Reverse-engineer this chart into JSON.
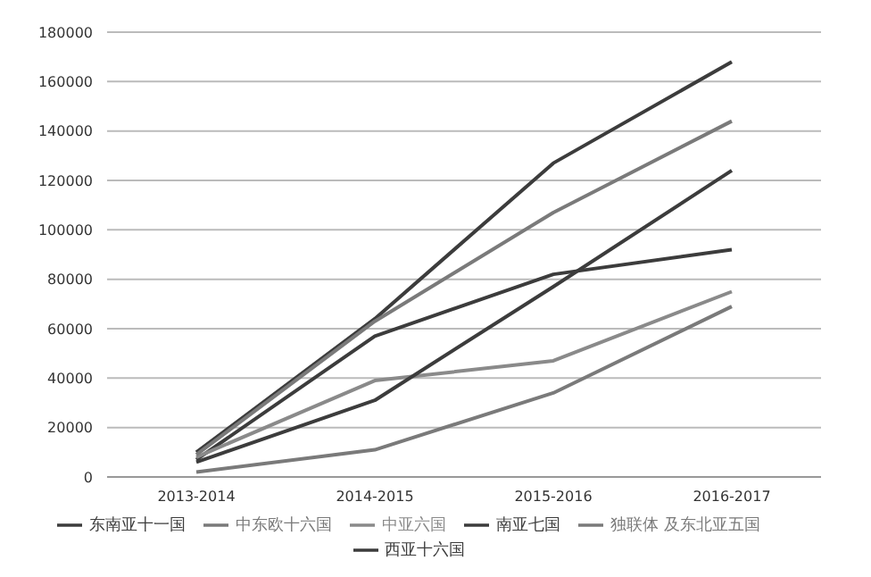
{
  "chart_data": {
    "type": "line",
    "categories": [
      "2013-2014",
      "2014-2015",
      "2015-2016",
      "2016-2017"
    ],
    "series": [
      {
        "name": "东南亚十一国",
        "color": "#3c3c3c",
        "values": [
          10000,
          64000,
          127000,
          168000
        ]
      },
      {
        "name": "南亚七国",
        "color": "#3c3c3c",
        "values": [
          7000,
          57000,
          82000,
          92000
        ]
      },
      {
        "name": "中亚六国",
        "color": "#8a8a8a",
        "values": [
          8000,
          39000,
          47000,
          75000
        ]
      },
      {
        "name": "西亚十六国",
        "color": "#3c3c3c",
        "values": [
          6000,
          31000,
          77000,
          124000
        ]
      },
      {
        "name": "中东欧十六国",
        "color": "#7a7a7a",
        "values": [
          9000,
          63000,
          107000,
          144000
        ]
      },
      {
        "name": "独联体 及东北亚五国",
        "color": "#7a7a7a",
        "values": [
          2000,
          11000,
          34000,
          69000
        ]
      }
    ],
    "ylim": [
      0,
      180000
    ],
    "yticks": [
      0,
      20000,
      40000,
      60000,
      80000,
      100000,
      120000,
      140000,
      160000,
      180000
    ],
    "grid": "y",
    "legend": "bottom",
    "marker": "none",
    "line_style": "solid"
  }
}
